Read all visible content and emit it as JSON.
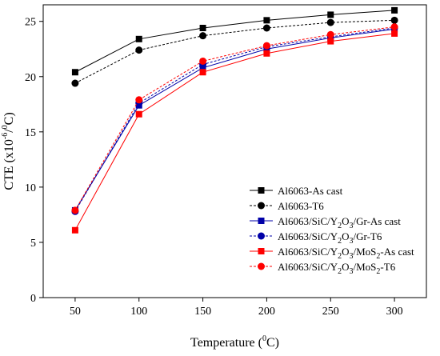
{
  "chart_data": {
    "type": "line",
    "title": "",
    "xlabel": {
      "prefix": "Temperature (",
      "sup": "0",
      "suffix": "C)"
    },
    "ylabel": {
      "prefix": "CTE (x10",
      "sup": "-6",
      "mid": "/",
      "sup2": "0",
      "suffix": "C)"
    },
    "xlim": [
      25,
      325
    ],
    "ylim": [
      0,
      26.5
    ],
    "x": [
      50,
      100,
      150,
      200,
      250,
      300
    ],
    "xticks": [
      50,
      100,
      150,
      200,
      250,
      300
    ],
    "yticks": [
      0,
      5,
      10,
      15,
      20,
      25
    ],
    "legend_position": "lower-right",
    "grid": false,
    "series": [
      {
        "name_parts": [
          "Al6063-As cast"
        ],
        "color": "#000000",
        "dash": "solid",
        "marker": "square",
        "values": [
          20.4,
          23.4,
          24.4,
          25.1,
          25.6,
          26.0
        ]
      },
      {
        "name_parts": [
          "Al6063-T6"
        ],
        "color": "#000000",
        "dash": "dashed",
        "marker": "circle",
        "values": [
          19.4,
          22.4,
          23.7,
          24.4,
          24.9,
          25.1
        ]
      },
      {
        "name_parts": [
          "Al6063/SiC/Y",
          "2",
          "O",
          "3",
          "/Gr-As cast"
        ],
        "color": "#0000a8",
        "dash": "solid",
        "marker": "square",
        "values": [
          7.9,
          17.4,
          20.8,
          22.5,
          23.5,
          24.3
        ]
      },
      {
        "name_parts": [
          "Al6063/SiC/Y",
          "2",
          "O",
          "3",
          "/Gr-T6"
        ],
        "color": "#0000a8",
        "dash": "dashed",
        "marker": "circle",
        "values": [
          7.8,
          17.6,
          21.1,
          22.7,
          23.6,
          24.4
        ]
      },
      {
        "name_parts": [
          "Al6063/SiC/Y",
          "2",
          "O",
          "3",
          "/MoS",
          "2",
          "-As cast"
        ],
        "color": "#ff0000",
        "dash": "solid",
        "marker": "square",
        "values": [
          6.1,
          16.6,
          20.4,
          22.1,
          23.2,
          23.9
        ]
      },
      {
        "name_parts": [
          "Al6063/SiC/Y",
          "2",
          "O",
          "3",
          "/MoS",
          "2",
          "-T6"
        ],
        "color": "#ff0000",
        "dash": "dashed",
        "marker": "circle",
        "values": [
          7.9,
          17.9,
          21.4,
          22.8,
          23.8,
          24.5
        ]
      }
    ]
  }
}
